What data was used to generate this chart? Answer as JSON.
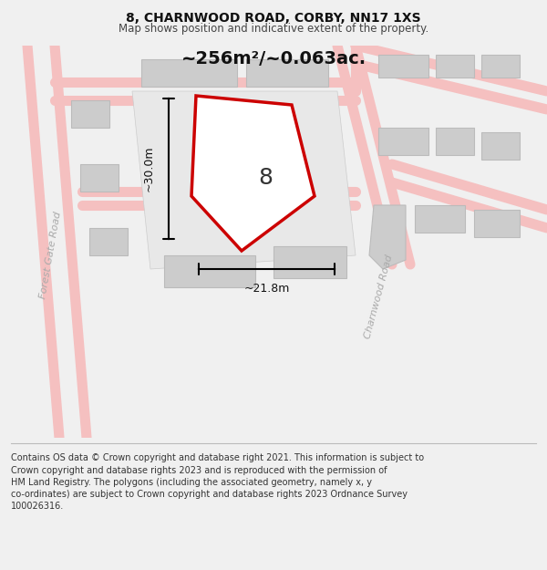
{
  "title": "8, CHARNWOOD ROAD, CORBY, NN17 1XS",
  "subtitle": "Map shows position and indicative extent of the property.",
  "footer": "Contains OS data © Crown copyright and database right 2021. This information is subject to\nCrown copyright and database rights 2023 and is reproduced with the permission of\nHM Land Registry. The polygons (including the associated geometry, namely x, y\nco-ordinates) are subject to Crown copyright and database rights 2023 Ordnance Survey\n100026316.",
  "area_label": "~256m²/~0.063ac.",
  "plot_number": "8",
  "dim_width": "~21.8m",
  "dim_height": "~30.0m",
  "road_label_1": "Forest Gate Road",
  "road_label_2": "Charnwood Road",
  "bg_color": "#f0f0f0",
  "map_bg": "#f8f8f8",
  "building_fill": "#cccccc",
  "building_edge": "#bbbbbb",
  "road_color": "#f5c0c0",
  "plot_fill": "#ffffff",
  "plot_edge": "#cc0000",
  "title_fontsize": 10,
  "subtitle_fontsize": 8.5,
  "footer_fontsize": 7.0
}
